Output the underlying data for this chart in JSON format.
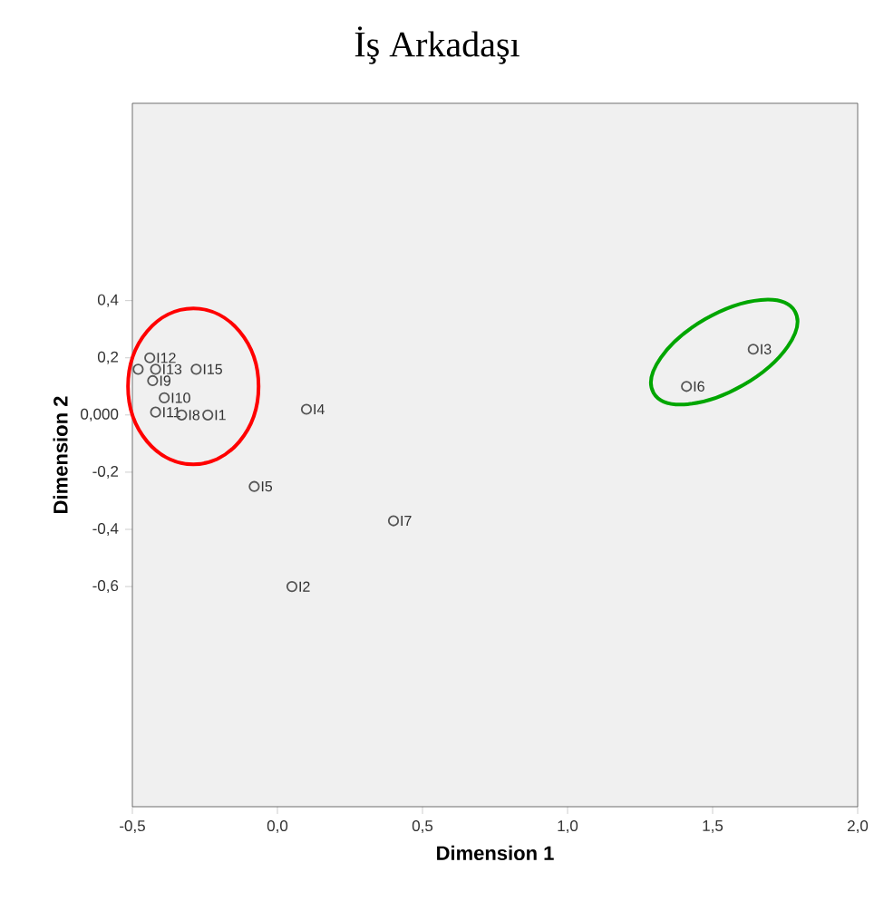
{
  "chart_data": {
    "type": "scatter",
    "title": "İş Arkadaşı",
    "xlabel": "Dimension 1",
    "ylabel": "Dimension 2",
    "x": [
      -0.48,
      -0.44,
      -0.42,
      -0.43,
      -0.28,
      -0.39,
      -0.42,
      -0.33,
      -0.24,
      0.1,
      -0.08,
      0.4,
      0.05,
      1.64,
      1.41
    ],
    "values": [
      0.16,
      0.2,
      0.16,
      0.12,
      0.16,
      0.06,
      0.01,
      0.0,
      0.0,
      0.02,
      -0.25,
      -0.37,
      -0.6,
      0.23,
      0.1
    ],
    "color": "#555555",
    "marker": "circle",
    "xlim": [
      -0.5,
      2.0
    ],
    "ylim": [
      -1.37,
      1.09
    ],
    "xticks": [
      {
        "value": -0.5,
        "label": "-0,5"
      },
      {
        "value": 0.0,
        "label": "0,0"
      },
      {
        "value": 0.5,
        "label": "0,5"
      },
      {
        "value": 1.0,
        "label": "1,0"
      },
      {
        "value": 1.5,
        "label": "1,5"
      },
      {
        "value": 2.0,
        "label": "2,0"
      }
    ],
    "yticks": [
      {
        "value": -0.6,
        "label": "-0,6"
      },
      {
        "value": -0.4,
        "label": "-0,4"
      },
      {
        "value": -0.2,
        "label": "-0,2"
      },
      {
        "value": 0.0,
        "label": "0,000"
      },
      {
        "value": 0.2,
        "label": "0,2"
      },
      {
        "value": 0.4,
        "label": "0,4"
      }
    ],
    "annotations": [
      {
        "text": "I12",
        "x": -0.44,
        "y": 0.2
      },
      {
        "text": "I13",
        "x": -0.42,
        "y": 0.16
      },
      {
        "text": "I9",
        "x": -0.43,
        "y": 0.12
      },
      {
        "text": "I15",
        "x": -0.28,
        "y": 0.16
      },
      {
        "text": "I10",
        "x": -0.39,
        "y": 0.06
      },
      {
        "text": "I11",
        "x": -0.42,
        "y": 0.01
      },
      {
        "text": "I8",
        "x": -0.33,
        "y": 0.0
      },
      {
        "text": "I1",
        "x": -0.24,
        "y": 0.0
      },
      {
        "text": "I4",
        "x": 0.1,
        "y": 0.02
      },
      {
        "text": "I5",
        "x": -0.08,
        "y": -0.25
      },
      {
        "text": "I7",
        "x": 0.4,
        "y": -0.37
      },
      {
        "text": "I2",
        "x": 0.05,
        "y": -0.6
      },
      {
        "text": "I3",
        "x": 1.64,
        "y": 0.23
      },
      {
        "text": "I6",
        "x": 1.41,
        "y": 0.1
      }
    ]
  }
}
